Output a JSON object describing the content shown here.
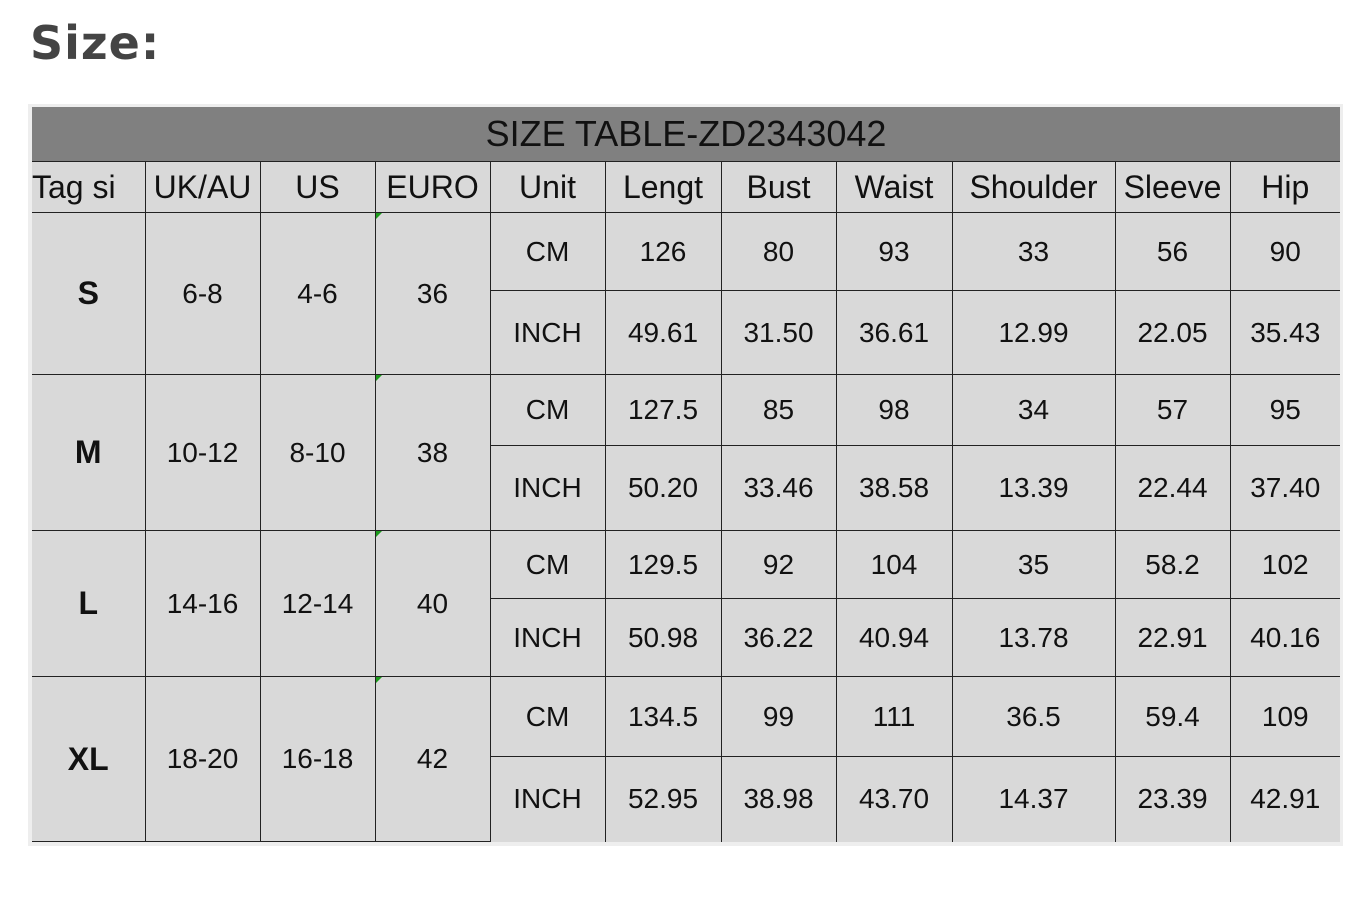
{
  "heading": "Size:",
  "table": {
    "title": "SIZE TABLE-ZD2343042",
    "headers": [
      "Tag si",
      "UK/AU",
      "US",
      "EURO",
      "Unit",
      "Lengt",
      "Bust",
      "Waist",
      "Shoulder",
      "Sleeve",
      "Hip"
    ],
    "rows": [
      {
        "tag": "S",
        "uk": "6-8",
        "us": "4-6",
        "euro": "36",
        "cm": [
          "CM",
          "126",
          "80",
          "93",
          "33",
          "56",
          "90"
        ],
        "inch": [
          "INCH",
          "49.61",
          "31.50",
          "36.61",
          "12.99",
          "22.05",
          "35.43"
        ]
      },
      {
        "tag": "M",
        "uk": "10-12",
        "us": "8-10",
        "euro": "38",
        "cm": [
          "CM",
          "127.5",
          "85",
          "98",
          "34",
          "57",
          "95"
        ],
        "inch": [
          "INCH",
          "50.20",
          "33.46",
          "38.58",
          "13.39",
          "22.44",
          "37.40"
        ]
      },
      {
        "tag": "L",
        "uk": "14-16",
        "us": "12-14",
        "euro": "40",
        "cm": [
          "CM",
          "129.5",
          "92",
          "104",
          "35",
          "58.2",
          "102"
        ],
        "inch": [
          "INCH",
          "50.98",
          "36.22",
          "40.94",
          "13.78",
          "22.91",
          "40.16"
        ]
      },
      {
        "tag": "XL",
        "uk": "18-20",
        "us": "16-18",
        "euro": "42",
        "cm": [
          "CM",
          "134.5",
          "99",
          "111",
          "36.5",
          "59.4",
          "109"
        ],
        "inch": [
          "INCH",
          "52.95",
          "38.98",
          "43.70",
          "14.37",
          "23.39",
          "42.91"
        ]
      }
    ]
  },
  "colors": {
    "title_bar": "#808080",
    "cell": "#d9d9d9",
    "marker": "#1a9a1a"
  }
}
